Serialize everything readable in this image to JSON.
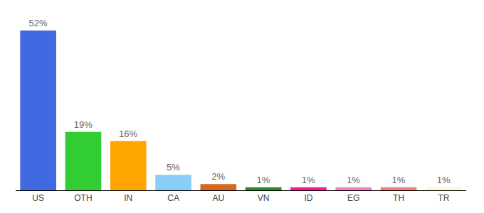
{
  "chart_data": {
    "type": "bar",
    "categories": [
      "US",
      "OTH",
      "IN",
      "CA",
      "AU",
      "VN",
      "ID",
      "EG",
      "TH",
      "TR"
    ],
    "values": [
      52,
      19,
      16,
      5,
      2,
      1,
      1,
      1,
      1,
      1
    ],
    "value_labels": [
      "52%",
      "19%",
      "16%",
      "5%",
      "2%",
      "1%",
      "1%",
      "1%",
      "1%",
      "1%"
    ],
    "colors": [
      "#4169e1",
      "#32cd32",
      "#ffa500",
      "#87cefa",
      "#d2691e",
      "#228b22",
      "#ff1493",
      "#f57fc4",
      "#f08080",
      "#fafad2"
    ],
    "ylim": [
      0,
      52
    ],
    "yticks": [],
    "data_labels": true,
    "tick_labels": "x",
    "grid": false
  }
}
